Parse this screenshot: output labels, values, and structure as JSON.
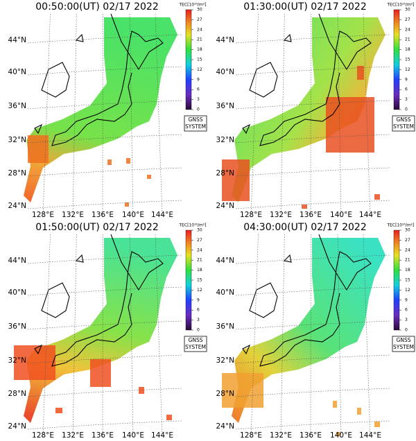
{
  "panels": [
    {
      "title": "00:50:00(UT) 02/17 2022"
    },
    {
      "title": "01:30:00(UT) 02/17 2022"
    },
    {
      "title": "01:50:00(UT) 02/17 2022"
    },
    {
      "title": "04:30:00(UT) 02/17 2022"
    }
  ],
  "lat_labels": [
    "44°N",
    "40°N",
    "36°N",
    "32°N",
    "28°N",
    "24°N"
  ],
  "lon_labels": [
    "128°E",
    "132°E",
    "136°E",
    "140°E",
    "144°E"
  ],
  "colorbar": {
    "label": "TEC[10¹⁶/m²]",
    "ticks": [
      0,
      3,
      6,
      9,
      12,
      15,
      18,
      21,
      24,
      27,
      30
    ]
  },
  "badge": [
    "GNSS",
    "SYSTEM"
  ]
}
